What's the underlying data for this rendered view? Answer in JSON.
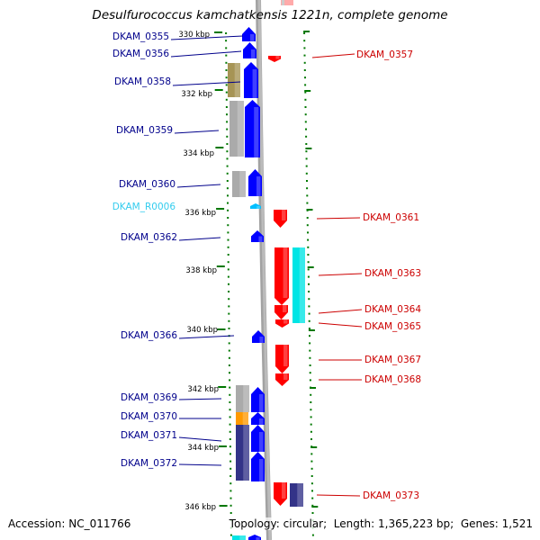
{
  "title": "Desulfurococcus kamchatkensis 1221n, complete genome",
  "footer": {
    "accession_label": "Accession:",
    "accession": "NC_011766",
    "topology_label": "Topology:",
    "topology": "circular",
    "length_label": "Length:",
    "length": "1,365,223 bp",
    "genes_label": "Genes:",
    "genes": "1,521"
  },
  "colors": {
    "plus_strand": "#0000ff",
    "minus_strand": "#ff0000",
    "rna": "#00bfff",
    "tick_green": "#007700",
    "ruler_gray": "#888888",
    "cog_gray": "#aaaaaa",
    "cog_olive": "#a69455",
    "cog_orange": "#ff9900",
    "cog_navy": "#333388",
    "cog_cyan": "#00e5e5"
  },
  "ruler_ticks": [
    "330 kbp",
    "332 kbp",
    "334 kbp",
    "336 kbp",
    "338 kbp",
    "340 kbp",
    "342 kbp",
    "344 kbp",
    "346 kbp"
  ],
  "left_labels": [
    {
      "text": "DKAM_0355",
      "color": "#00008b"
    },
    {
      "text": "DKAM_0356",
      "color": "#00008b"
    },
    {
      "text": "DKAM_0358",
      "color": "#00008b"
    },
    {
      "text": "DKAM_0359",
      "color": "#00008b"
    },
    {
      "text": "DKAM_0360",
      "color": "#00008b"
    },
    {
      "text": "DKAM_R0006",
      "color": "#33ccee"
    },
    {
      "text": "DKAM_0362",
      "color": "#00008b"
    },
    {
      "text": "DKAM_0366",
      "color": "#00008b"
    },
    {
      "text": "DKAM_0369",
      "color": "#00008b"
    },
    {
      "text": "DKAM_0370",
      "color": "#00008b"
    },
    {
      "text": "DKAM_0371",
      "color": "#00008b"
    },
    {
      "text": "DKAM_0372",
      "color": "#00008b"
    }
  ],
  "right_labels": [
    {
      "text": "DKAM_0357",
      "color": "#cc0000"
    },
    {
      "text": "DKAM_0361",
      "color": "#cc0000"
    },
    {
      "text": "DKAM_0363",
      "color": "#cc0000"
    },
    {
      "text": "DKAM_0364",
      "color": "#cc0000"
    },
    {
      "text": "DKAM_0365",
      "color": "#cc0000"
    },
    {
      "text": "DKAM_0367",
      "color": "#cc0000"
    },
    {
      "text": "DKAM_0368",
      "color": "#cc0000"
    },
    {
      "text": "DKAM_0373",
      "color": "#cc0000"
    }
  ]
}
